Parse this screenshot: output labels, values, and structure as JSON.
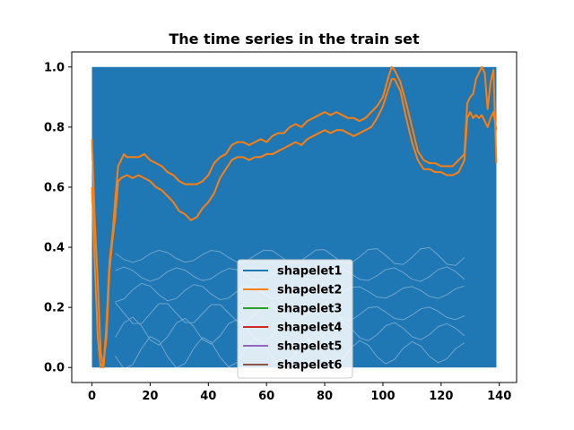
{
  "chart_data": {
    "type": "line",
    "title": "The time series in the train set",
    "xlabel": "",
    "ylabel": "",
    "xlim": [
      -6.95,
      145.95
    ],
    "ylim": [
      -0.05,
      1.05
    ],
    "x_ticks": [
      0,
      20,
      40,
      60,
      80,
      100,
      120,
      140
    ],
    "y_ticks": [
      0.0,
      0.2,
      0.4,
      0.6,
      0.8,
      1.0
    ],
    "grid": false,
    "legend_position": "lower center",
    "background_band": {
      "description_series": "train set",
      "x_range": [
        0,
        139
      ],
      "y_range": [
        0.0,
        1.0
      ],
      "color": "#1f77b4"
    },
    "series": [
      {
        "name": "shapelet2",
        "color": "#ff7f0e",
        "points": [
          [
            0,
            0.76
          ],
          [
            1,
            0.48
          ],
          [
            2,
            0.28
          ],
          [
            3,
            0.05
          ],
          [
            4,
            0.0
          ],
          [
            5,
            0.15
          ],
          [
            6,
            0.35
          ],
          [
            7,
            0.44
          ],
          [
            8,
            0.56
          ],
          [
            9,
            0.67
          ],
          [
            10,
            0.69
          ],
          [
            11,
            0.71
          ],
          [
            12,
            0.7
          ],
          [
            14,
            0.7
          ],
          [
            16,
            0.7
          ],
          [
            18,
            0.71
          ],
          [
            20,
            0.69
          ],
          [
            22,
            0.68
          ],
          [
            24,
            0.67
          ],
          [
            26,
            0.65
          ],
          [
            28,
            0.64
          ],
          [
            30,
            0.62
          ],
          [
            32,
            0.61
          ],
          [
            34,
            0.61
          ],
          [
            36,
            0.61
          ],
          [
            38,
            0.62
          ],
          [
            40,
            0.64
          ],
          [
            42,
            0.68
          ],
          [
            44,
            0.7
          ],
          [
            46,
            0.71
          ],
          [
            48,
            0.74
          ],
          [
            50,
            0.75
          ],
          [
            52,
            0.75
          ],
          [
            54,
            0.74
          ],
          [
            56,
            0.75
          ],
          [
            58,
            0.76
          ],
          [
            60,
            0.75
          ],
          [
            62,
            0.77
          ],
          [
            64,
            0.78
          ],
          [
            66,
            0.78
          ],
          [
            68,
            0.8
          ],
          [
            70,
            0.81
          ],
          [
            72,
            0.8
          ],
          [
            74,
            0.82
          ],
          [
            76,
            0.83
          ],
          [
            78,
            0.84
          ],
          [
            80,
            0.85
          ],
          [
            82,
            0.84
          ],
          [
            84,
            0.85
          ],
          [
            86,
            0.84
          ],
          [
            88,
            0.83
          ],
          [
            90,
            0.83
          ],
          [
            92,
            0.82
          ],
          [
            94,
            0.83
          ],
          [
            96,
            0.85
          ],
          [
            98,
            0.87
          ],
          [
            100,
            0.9
          ],
          [
            102,
            0.97
          ],
          [
            103,
            1.0
          ],
          [
            104,
            0.99
          ],
          [
            106,
            0.95
          ],
          [
            108,
            0.88
          ],
          [
            110,
            0.8
          ],
          [
            112,
            0.72
          ],
          [
            114,
            0.69
          ],
          [
            116,
            0.68
          ],
          [
            118,
            0.68
          ],
          [
            120,
            0.67
          ],
          [
            122,
            0.67
          ],
          [
            124,
            0.67
          ],
          [
            126,
            0.69
          ],
          [
            128,
            0.71
          ],
          [
            129,
            0.88
          ],
          [
            130,
            0.9
          ],
          [
            131,
            0.91
          ],
          [
            132,
            0.96
          ],
          [
            133,
            0.98
          ],
          [
            134,
            1.0
          ],
          [
            135,
            0.98
          ],
          [
            136,
            0.86
          ],
          [
            137,
            0.95
          ],
          [
            138,
            0.99
          ],
          [
            139,
            0.68
          ]
        ]
      },
      {
        "name": "shapelet2 (lower)",
        "color": "#ff7f0e",
        "points": [
          [
            0,
            0.6
          ],
          [
            1,
            0.33
          ],
          [
            2,
            0.1
          ],
          [
            3,
            0.0
          ],
          [
            4,
            0.02
          ],
          [
            5,
            0.1
          ],
          [
            6,
            0.32
          ],
          [
            7,
            0.42
          ],
          [
            8,
            0.5
          ],
          [
            9,
            0.62
          ],
          [
            10,
            0.63
          ],
          [
            12,
            0.64
          ],
          [
            14,
            0.63
          ],
          [
            16,
            0.64
          ],
          [
            18,
            0.63
          ],
          [
            20,
            0.62
          ],
          [
            22,
            0.6
          ],
          [
            24,
            0.59
          ],
          [
            26,
            0.57
          ],
          [
            28,
            0.55
          ],
          [
            30,
            0.52
          ],
          [
            32,
            0.51
          ],
          [
            34,
            0.49
          ],
          [
            36,
            0.5
          ],
          [
            38,
            0.53
          ],
          [
            40,
            0.55
          ],
          [
            42,
            0.58
          ],
          [
            44,
            0.63
          ],
          [
            46,
            0.66
          ],
          [
            48,
            0.69
          ],
          [
            50,
            0.7
          ],
          [
            52,
            0.7
          ],
          [
            54,
            0.69
          ],
          [
            56,
            0.7
          ],
          [
            58,
            0.7
          ],
          [
            60,
            0.71
          ],
          [
            62,
            0.71
          ],
          [
            64,
            0.72
          ],
          [
            66,
            0.73
          ],
          [
            68,
            0.74
          ],
          [
            70,
            0.75
          ],
          [
            72,
            0.74
          ],
          [
            74,
            0.76
          ],
          [
            76,
            0.77
          ],
          [
            78,
            0.78
          ],
          [
            80,
            0.79
          ],
          [
            82,
            0.78
          ],
          [
            84,
            0.79
          ],
          [
            86,
            0.79
          ],
          [
            88,
            0.78
          ],
          [
            90,
            0.77
          ],
          [
            92,
            0.78
          ],
          [
            94,
            0.79
          ],
          [
            96,
            0.8
          ],
          [
            98,
            0.83
          ],
          [
            100,
            0.87
          ],
          [
            102,
            0.93
          ],
          [
            103,
            0.96
          ],
          [
            104,
            0.96
          ],
          [
            106,
            0.92
          ],
          [
            108,
            0.83
          ],
          [
            110,
            0.75
          ],
          [
            112,
            0.69
          ],
          [
            114,
            0.66
          ],
          [
            116,
            0.66
          ],
          [
            118,
            0.65
          ],
          [
            120,
            0.65
          ],
          [
            122,
            0.64
          ],
          [
            124,
            0.64
          ],
          [
            126,
            0.65
          ],
          [
            128,
            0.69
          ],
          [
            129,
            0.83
          ],
          [
            130,
            0.85
          ],
          [
            131,
            0.83
          ],
          [
            132,
            0.84
          ],
          [
            133,
            0.83
          ],
          [
            134,
            0.84
          ],
          [
            135,
            0.82
          ],
          [
            136,
            0.8
          ],
          [
            137,
            0.83
          ],
          [
            138,
            0.85
          ],
          [
            139,
            0.79
          ]
        ]
      }
    ],
    "legend": [
      {
        "label": "shapelet1",
        "color": "#1f77b4"
      },
      {
        "label": "shapelet2",
        "color": "#ff7f0e"
      },
      {
        "label": "shapelet3",
        "color": "#2ca02c"
      },
      {
        "label": "shapelet4",
        "color": "#d62728"
      },
      {
        "label": "shapelet5",
        "color": "#9467bd"
      },
      {
        "label": "shapelet6",
        "color": "#8c564b"
      }
    ]
  }
}
